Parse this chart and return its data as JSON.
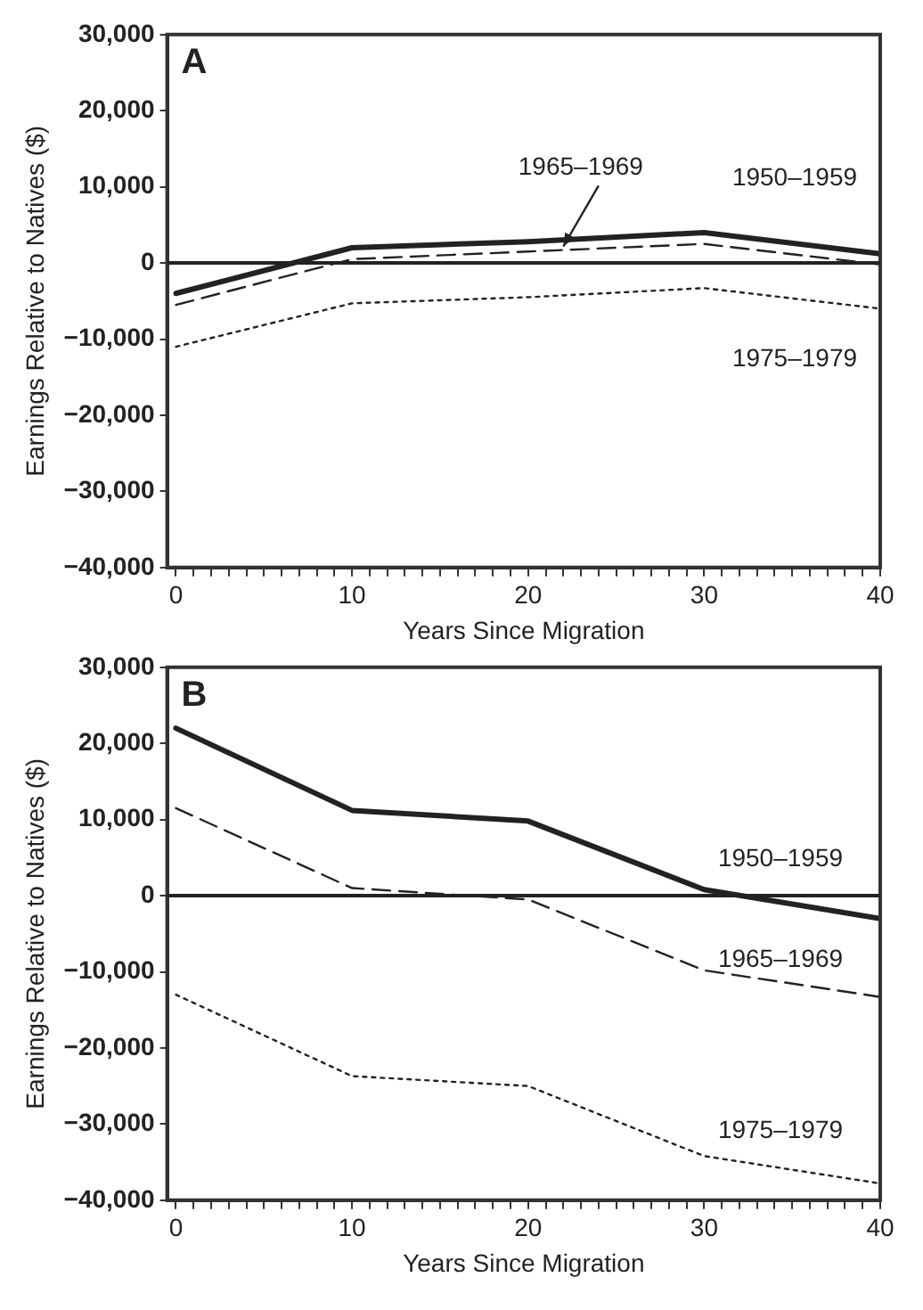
{
  "chart_data": [
    {
      "type": "line",
      "title": "A",
      "xlabel": "Years Since Migration",
      "ylabel": "Earnings Relative to Natives ($)",
      "x": [
        0,
        10,
        20,
        30,
        40
      ],
      "series": [
        {
          "name": "1950–1959",
          "color": "#222222",
          "line_style": "solid",
          "values": [
            -4000,
            2000,
            2800,
            4000,
            1200
          ]
        },
        {
          "name": "1965–1969",
          "color": "#222222",
          "line_style": "dashed",
          "values": [
            -5500,
            500,
            1500,
            2500,
            -200
          ]
        },
        {
          "name": "1975–1979",
          "color": "#222222",
          "line_style": "dotted",
          "values": [
            -11000,
            -5300,
            -4500,
            -3300,
            -6000
          ]
        }
      ],
      "ref_lines": [
        {
          "axis": "y",
          "value": 0,
          "color": "#222222"
        }
      ],
      "xlim": [
        -0.5,
        40
      ],
      "xticks": [
        0,
        {
          "value": 1,
          "label": null
        },
        {
          "value": 2,
          "label": null
        },
        {
          "value": 3,
          "label": null
        },
        {
          "value": 4,
          "label": null
        },
        {
          "value": 5,
          "label": null
        },
        {
          "value": 6,
          "label": null
        },
        {
          "value": 7,
          "label": null
        },
        {
          "value": 8,
          "label": null
        },
        {
          "value": 9,
          "label": null
        },
        10,
        {
          "value": 11,
          "label": null
        },
        {
          "value": 12,
          "label": null
        },
        {
          "value": 13,
          "label": null
        },
        {
          "value": 14,
          "label": null
        },
        {
          "value": 15,
          "label": null
        },
        {
          "value": 16,
          "label": null
        },
        {
          "value": 17,
          "label": null
        },
        {
          "value": 18,
          "label": null
        },
        {
          "value": 19,
          "label": null
        },
        20,
        {
          "value": 21,
          "label": null
        },
        {
          "value": 22,
          "label": null
        },
        {
          "value": 23,
          "label": null
        },
        {
          "value": 24,
          "label": null
        },
        {
          "value": 25,
          "label": null
        },
        {
          "value": 26,
          "label": null
        },
        {
          "value": 27,
          "label": null
        },
        {
          "value": 28,
          "label": null
        },
        {
          "value": 29,
          "label": null
        },
        30,
        {
          "value": 31,
          "label": null
        },
        {
          "value": 32,
          "label": null
        },
        {
          "value": 33,
          "label": null
        },
        {
          "value": 34,
          "label": null
        },
        {
          "value": 35,
          "label": null
        },
        {
          "value": 36,
          "label": null
        },
        {
          "value": 37,
          "label": null
        },
        {
          "value": 38,
          "label": null
        },
        {
          "value": 39,
          "label": null
        },
        40
      ],
      "ylim": [
        -40000,
        30000
      ],
      "yticks": [
        {
          "value": -40000,
          "label": "−40,000"
        },
        {
          "value": -30000,
          "label": "−30,000"
        },
        {
          "value": -20000,
          "label": "−20,000"
        },
        {
          "value": -10000,
          "label": "−10,000"
        },
        0,
        {
          "value": 10000,
          "label": "10,000"
        },
        {
          "value": 20000,
          "label": "20,000"
        },
        {
          "value": 30000,
          "label": "30,000"
        }
      ],
      "legend": false,
      "grid": false,
      "marker": "none"
    },
    {
      "type": "line",
      "title": "B",
      "xlabel": "Years Since Migration",
      "ylabel": "Earnings Relative to Natives ($)",
      "x": [
        0,
        10,
        20,
        30,
        40
      ],
      "series": [
        {
          "name": "1950–1959",
          "color": "#222222",
          "line_style": "solid",
          "values": [
            22000,
            11200,
            9800,
            800,
            -3000
          ]
        },
        {
          "name": "1965–1969",
          "color": "#222222",
          "line_style": "dashed",
          "values": [
            11500,
            1000,
            -500,
            -9800,
            -13300
          ]
        },
        {
          "name": "1975–1979",
          "color": "#222222",
          "line_style": "dotted",
          "values": [
            -13000,
            -23700,
            -25000,
            -34200,
            -37800
          ]
        }
      ],
      "ref_lines": [
        {
          "axis": "y",
          "value": 0,
          "color": "#222222"
        }
      ],
      "xlim": [
        -0.5,
        40
      ],
      "xticks": [
        0,
        {
          "value": 1,
          "label": null
        },
        {
          "value": 2,
          "label": null
        },
        {
          "value": 3,
          "label": null
        },
        {
          "value": 4,
          "label": null
        },
        {
          "value": 5,
          "label": null
        },
        {
          "value": 6,
          "label": null
        },
        {
          "value": 7,
          "label": null
        },
        {
          "value": 8,
          "label": null
        },
        {
          "value": 9,
          "label": null
        },
        10,
        {
          "value": 11,
          "label": null
        },
        {
          "value": 12,
          "label": null
        },
        {
          "value": 13,
          "label": null
        },
        {
          "value": 14,
          "label": null
        },
        {
          "value": 15,
          "label": null
        },
        {
          "value": 16,
          "label": null
        },
        {
          "value": 17,
          "label": null
        },
        {
          "value": 18,
          "label": null
        },
        {
          "value": 19,
          "label": null
        },
        20,
        {
          "value": 21,
          "label": null
        },
        {
          "value": 22,
          "label": null
        },
        {
          "value": 23,
          "label": null
        },
        {
          "value": 24,
          "label": null
        },
        {
          "value": 25,
          "label": null
        },
        {
          "value": 26,
          "label": null
        },
        {
          "value": 27,
          "label": null
        },
        {
          "value": 28,
          "label": null
        },
        {
          "value": 29,
          "label": null
        },
        30,
        {
          "value": 31,
          "label": null
        },
        {
          "value": 32,
          "label": null
        },
        {
          "value": 33,
          "label": null
        },
        {
          "value": 34,
          "label": null
        },
        {
          "value": 35,
          "label": null
        },
        {
          "value": 36,
          "label": null
        },
        {
          "value": 37,
          "label": null
        },
        {
          "value": 38,
          "label": null
        },
        {
          "value": 39,
          "label": null
        },
        40
      ],
      "ylim": [
        -40000,
        30000
      ],
      "yticks": [
        {
          "value": -40000,
          "label": "−40,000"
        },
        {
          "value": -30000,
          "label": "−30,000"
        },
        {
          "value": -20000,
          "label": "−20,000"
        },
        {
          "value": -10000,
          "label": "−10,000"
        },
        0,
        {
          "value": 10000,
          "label": "10,000"
        },
        {
          "value": 20000,
          "label": "20,000"
        },
        {
          "value": 30000,
          "label": "30,000"
        }
      ],
      "legend": false,
      "grid": false,
      "marker": "none"
    }
  ]
}
